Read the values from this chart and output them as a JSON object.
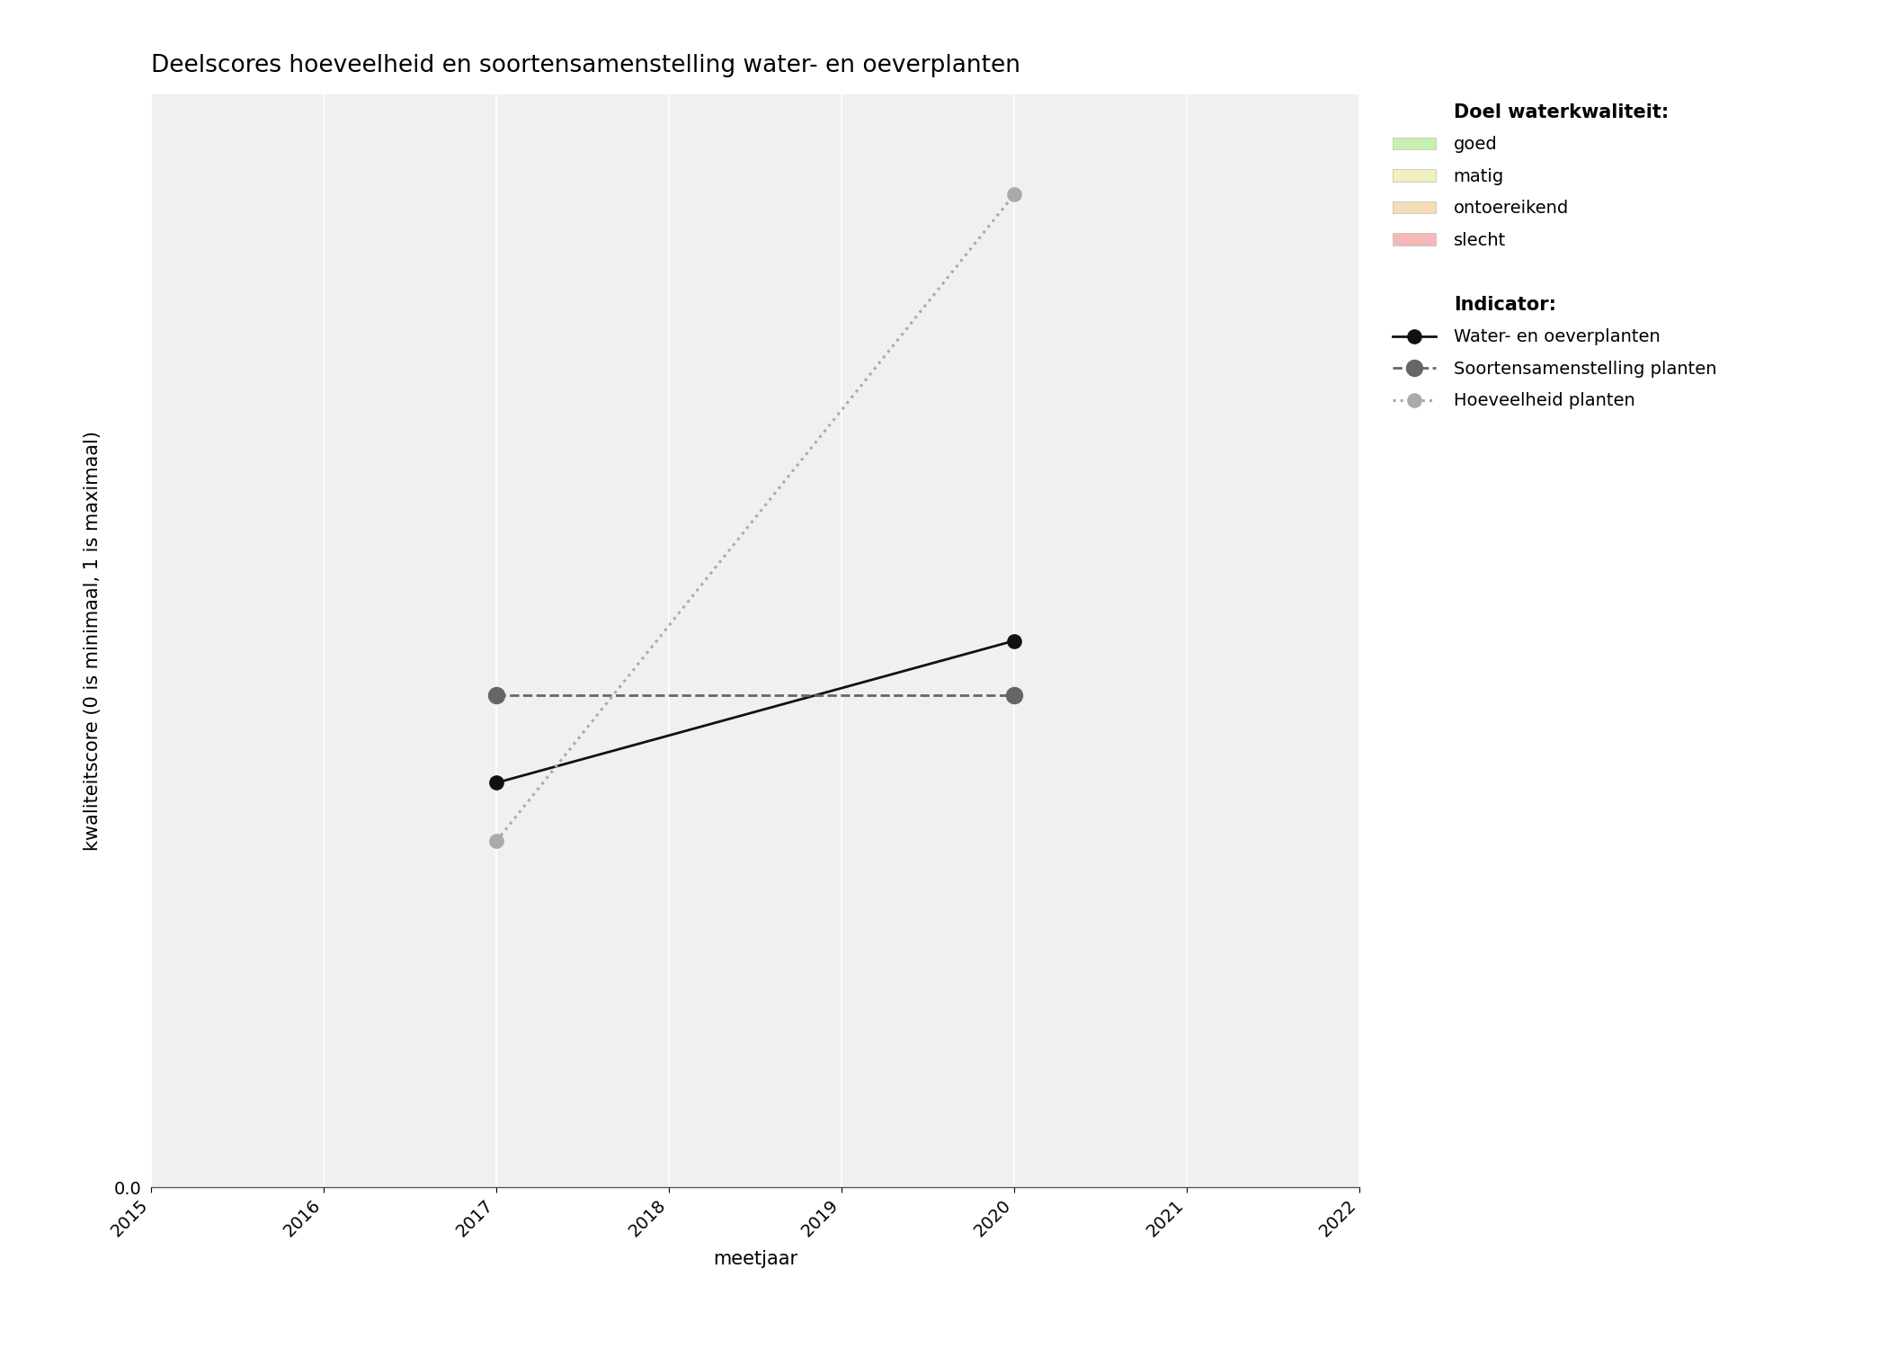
{
  "title": "Deelscores hoeveelheid en soortensamenstelling water- en oeverplanten",
  "xlabel": "meetjaar",
  "ylabel": "kwaliteitscore (0 is minimaal, 1 is maximaal)",
  "xlim": [
    2015,
    2022
  ],
  "ylim": [
    0.0,
    0.6
  ],
  "xticks": [
    2015,
    2016,
    2017,
    2018,
    2019,
    2020,
    2021,
    2022
  ],
  "ytick_positions": [
    0.0
  ],
  "ytick_labels": [
    "0.0"
  ],
  "series": [
    {
      "name": "Water- en oeverplanten",
      "x": [
        2017,
        2020
      ],
      "y": [
        0.222,
        0.3
      ],
      "color": "#111111",
      "linestyle": "solid",
      "linewidth": 2.0,
      "markersize": 11,
      "marker": "o"
    },
    {
      "name": "Soortensamenstelling planten",
      "x": [
        2017,
        2020
      ],
      "y": [
        0.27,
        0.27
      ],
      "color": "#666666",
      "linestyle": "dashed",
      "linewidth": 2.0,
      "markersize": 13,
      "marker": "o"
    },
    {
      "name": "Hoeveelheid planten",
      "x": [
        2017,
        2020
      ],
      "y": [
        0.19,
        0.545
      ],
      "color": "#aaaaaa",
      "linestyle": "dotted",
      "linewidth": 2.2,
      "markersize": 11,
      "marker": "o"
    }
  ],
  "legend_quality_title": "Doel waterkwaliteit:",
  "legend_quality_items": [
    {
      "label": "goed",
      "color": "#c8f0b0"
    },
    {
      "label": "matig",
      "color": "#f0f0c0"
    },
    {
      "label": "ontoereikend",
      "color": "#f5ddb8"
    },
    {
      "label": "slecht",
      "color": "#f5b8b8"
    }
  ],
  "legend_indicator_title": "Indicator:",
  "background_color": "#ffffff",
  "plot_bg_color": "#f0f0f0",
  "grid_color": "#ffffff",
  "title_fontsize": 19,
  "label_fontsize": 15,
  "tick_fontsize": 14,
  "legend_fontsize": 14,
  "legend_title_fontsize": 15
}
